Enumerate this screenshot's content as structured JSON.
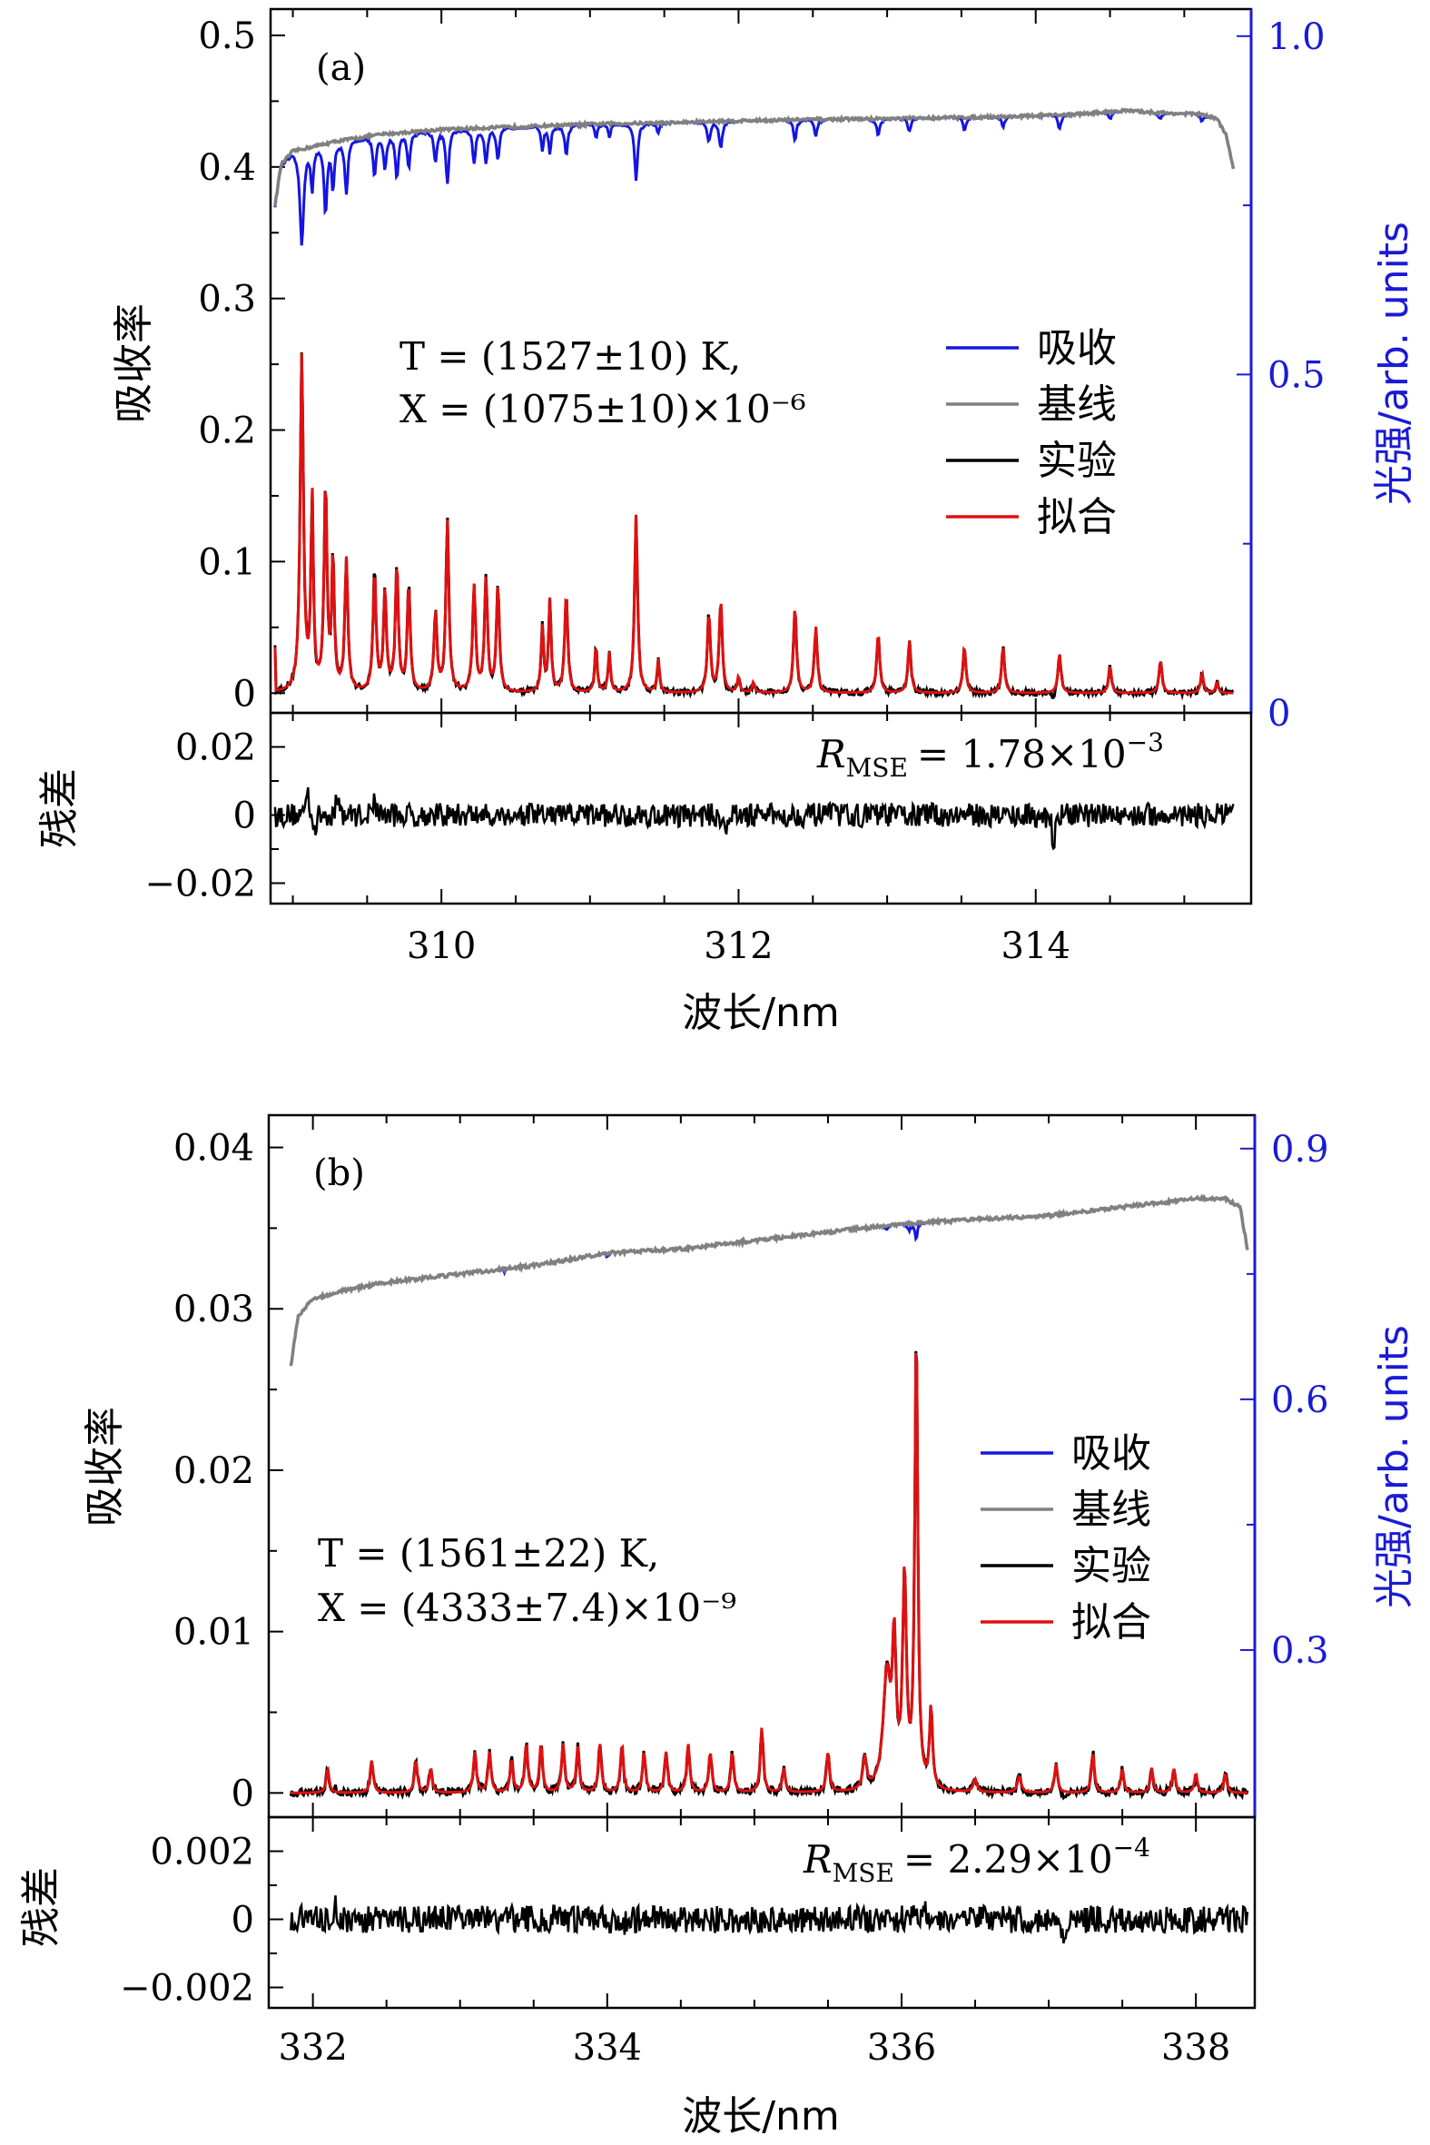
{
  "chart_data": [
    {
      "id": "a",
      "type": "line",
      "panel_label": "(a)",
      "xlabel": "波长/nm",
      "xlim": [
        308.85,
        315.45
      ],
      "xticks": [
        310,
        312,
        314
      ],
      "x_minor_step": 0.5,
      "top": {
        "ylabel": "吸收率",
        "ylim": [
          -0.015,
          0.52
        ],
        "yticks": [
          0,
          0.1,
          0.2,
          0.3,
          0.4,
          0.5
        ],
        "ytick_labels": [
          "0",
          "0.1",
          "0.2",
          "0.3",
          "0.4",
          "0.5"
        ],
        "y2label": "光强/arb. units",
        "y2lim": [
          0,
          1.04
        ],
        "y2ticks": [
          0,
          0.5,
          1.0
        ],
        "y2tick_labels": [
          "0",
          "0.5",
          "1.0"
        ],
        "annotation": [
          "T = (1527±10) K,",
          "X = (1075±10)×10⁻⁶"
        ],
        "legend": [
          {
            "label": "吸收",
            "color": "#1515e0"
          },
          {
            "label": "基线",
            "color": "#808080"
          },
          {
            "label": "实验",
            "color": "#000000"
          },
          {
            "label": "拟合",
            "color": "#e01010"
          }
        ],
        "series": [
          {
            "name": "基线",
            "axis": "right",
            "color": "#808080",
            "x": [
              308.88,
              308.92,
              309.0,
              309.1,
              309.3,
              309.6,
              310.0,
              310.5,
              311.0,
              311.5,
              312.0,
              312.5,
              313.0,
              313.5,
              314.0,
              314.3,
              314.6,
              314.9,
              315.1,
              315.22,
              315.28,
              315.33
            ],
            "y": [
              0.75,
              0.81,
              0.83,
              0.835,
              0.845,
              0.855,
              0.862,
              0.866,
              0.87,
              0.872,
              0.875,
              0.877,
              0.878,
              0.88,
              0.882,
              0.885,
              0.89,
              0.886,
              0.885,
              0.878,
              0.855,
              0.805
            ]
          },
          {
            "name": "吸收",
            "axis": "right",
            "color": "#1515e0",
            "dips": [
              [
                309.06,
                0.14,
                0.015
              ],
              [
                309.13,
                0.06,
                0.01
              ],
              [
                309.22,
                0.1,
                0.012
              ],
              [
                309.27,
                0.07,
                0.01
              ],
              [
                309.36,
                0.08,
                0.012
              ],
              [
                309.55,
                0.06,
                0.012
              ],
              [
                309.62,
                0.05,
                0.012
              ],
              [
                309.7,
                0.065,
                0.012
              ],
              [
                309.78,
                0.05,
                0.012
              ],
              [
                309.96,
                0.045,
                0.012
              ],
              [
                310.04,
                0.08,
                0.012
              ],
              [
                310.22,
                0.05,
                0.012
              ],
              [
                310.3,
                0.05,
                0.012
              ],
              [
                310.38,
                0.048,
                0.012
              ],
              [
                310.68,
                0.035,
                0.01
              ],
              [
                310.73,
                0.04,
                0.01
              ],
              [
                310.84,
                0.045,
                0.012
              ],
              [
                311.04,
                0.02,
                0.01
              ],
              [
                311.13,
                0.02,
                0.01
              ],
              [
                311.31,
                0.085,
                0.012
              ],
              [
                311.46,
                0.015,
                0.01
              ],
              [
                311.8,
                0.03,
                0.012
              ],
              [
                311.88,
                0.04,
                0.012
              ],
              [
                312.38,
                0.03,
                0.012
              ],
              [
                312.52,
                0.025,
                0.012
              ],
              [
                312.94,
                0.025,
                0.012
              ],
              [
                313.15,
                0.02,
                0.012
              ],
              [
                313.52,
                0.018,
                0.012
              ],
              [
                313.78,
                0.015,
                0.012
              ],
              [
                314.16,
                0.02,
                0.012
              ],
              [
                314.5,
                0.01,
                0.012
              ],
              [
                314.84,
                0.01,
                0.012
              ],
              [
                315.12,
                0.01,
                0.012
              ]
            ]
          },
          {
            "name": "实验",
            "axis": "left",
            "color": "#000000"
          },
          {
            "name": "拟合",
            "axis": "left",
            "color": "#e01010",
            "start_value": 0.035,
            "peaks": [
              [
                309.06,
                0.255,
                0.013
              ],
              [
                309.13,
                0.145,
                0.01
              ],
              [
                309.22,
                0.155,
                0.012
              ],
              [
                309.27,
                0.1,
                0.01
              ],
              [
                309.36,
                0.1,
                0.012
              ],
              [
                309.55,
                0.09,
                0.012
              ],
              [
                309.62,
                0.075,
                0.012
              ],
              [
                309.7,
                0.095,
                0.012
              ],
              [
                309.78,
                0.08,
                0.012
              ],
              [
                309.96,
                0.06,
                0.012
              ],
              [
                310.04,
                0.13,
                0.012
              ],
              [
                310.22,
                0.08,
                0.012
              ],
              [
                310.3,
                0.085,
                0.012
              ],
              [
                310.38,
                0.08,
                0.012
              ],
              [
                310.68,
                0.05,
                0.01
              ],
              [
                310.73,
                0.07,
                0.01
              ],
              [
                310.84,
                0.075,
                0.012
              ],
              [
                311.04,
                0.035,
                0.01
              ],
              [
                311.13,
                0.03,
                0.01
              ],
              [
                311.31,
                0.135,
                0.012
              ],
              [
                311.46,
                0.025,
                0.01
              ],
              [
                311.8,
                0.06,
                0.012
              ],
              [
                311.88,
                0.07,
                0.012
              ],
              [
                312.0,
                0.012,
                0.01
              ],
              [
                312.1,
                0.008,
                0.01
              ],
              [
                312.38,
                0.065,
                0.012
              ],
              [
                312.52,
                0.05,
                0.012
              ],
              [
                312.94,
                0.045,
                0.012
              ],
              [
                313.15,
                0.04,
                0.012
              ],
              [
                313.52,
                0.035,
                0.012
              ],
              [
                313.78,
                0.035,
                0.012
              ],
              [
                314.16,
                0.03,
                0.012
              ],
              [
                314.5,
                0.02,
                0.012
              ],
              [
                314.84,
                0.025,
                0.012
              ],
              [
                315.12,
                0.015,
                0.012
              ],
              [
                315.22,
                0.008,
                0.01
              ]
            ]
          }
        ]
      },
      "residual": {
        "ylabel": "残差",
        "ylim": [
          -0.026,
          0.03
        ],
        "yticks": [
          -0.02,
          0,
          0.02
        ],
        "ytick_labels": [
          "−0.02",
          "0",
          "0.02"
        ],
        "rmse_label": "R",
        "rmse_sub": "MSE",
        "rmse_value": "= 1.78×10",
        "rmse_exp": "−3",
        "noise_amplitude": 0.0035,
        "spikes": [
          [
            309.1,
            0.009
          ],
          [
            309.15,
            -0.005
          ],
          [
            309.55,
            0.006
          ],
          [
            311.92,
            -0.005
          ],
          [
            314.12,
            -0.009
          ],
          [
            309.3,
            0.006
          ]
        ]
      }
    },
    {
      "id": "b",
      "type": "line",
      "panel_label": "(b)",
      "xlabel": "波长/nm",
      "xlim": [
        331.7,
        338.4
      ],
      "xticks": [
        332,
        334,
        336,
        338
      ],
      "x_minor_step": 0.5,
      "top": {
        "ylabel": "吸收率",
        "ylim": [
          -0.0015,
          0.042
        ],
        "yticks": [
          0,
          0.01,
          0.02,
          0.03,
          0.04
        ],
        "ytick_labels": [
          "0",
          "0.01",
          "0.02",
          "0.03",
          "0.04"
        ],
        "y2label": "光强/arb. units",
        "y2lim": [
          0.1,
          0.94
        ],
        "y2ticks": [
          0.3,
          0.6,
          0.9
        ],
        "y2tick_labels": [
          "0.3",
          "0.6",
          "0.9"
        ],
        "annotation": [
          "T = (1561±22) K,",
          "X = (4333±7.4)×10⁻⁹"
        ],
        "legend": [
          {
            "label": "吸收",
            "color": "#1515e0"
          },
          {
            "label": "基线",
            "color": "#808080"
          },
          {
            "label": "实验",
            "color": "#000000"
          },
          {
            "label": "拟合",
            "color": "#e01010"
          }
        ],
        "series": [
          {
            "name": "基线",
            "axis": "right",
            "color": "#808080",
            "x": [
              331.85,
              331.9,
              332.0,
              332.2,
              332.5,
              333.0,
              333.5,
              334.0,
              334.5,
              335.0,
              335.5,
              336.0,
              336.5,
              337.0,
              337.5,
              338.0,
              338.2,
              338.3,
              338.35
            ],
            "y": [
              0.64,
              0.7,
              0.72,
              0.73,
              0.74,
              0.75,
              0.76,
              0.775,
              0.78,
              0.79,
              0.8,
              0.81,
              0.815,
              0.82,
              0.83,
              0.84,
              0.84,
              0.83,
              0.78
            ]
          },
          {
            "name": "吸收",
            "axis": "right",
            "color": "#1515e0",
            "dips": [
              [
                336.05,
                0.008,
                0.012
              ],
              [
                336.1,
                0.018,
                0.01
              ],
              [
                335.9,
                0.004,
                0.012
              ],
              [
                334.0,
                0.003,
                0.012
              ],
              [
                333.3,
                0.003,
                0.012
              ]
            ]
          },
          {
            "name": "实验",
            "axis": "left",
            "color": "#000000"
          },
          {
            "name": "拟合",
            "axis": "left",
            "color": "#e01010",
            "start_value": 0.0,
            "peaks": [
              [
                332.1,
                0.0015,
                0.012
              ],
              [
                332.4,
                0.002,
                0.012
              ],
              [
                332.7,
                0.002,
                0.012
              ],
              [
                332.8,
                0.0015,
                0.012
              ],
              [
                333.1,
                0.0025,
                0.012
              ],
              [
                333.2,
                0.0025,
                0.012
              ],
              [
                333.35,
                0.002,
                0.012
              ],
              [
                333.45,
                0.003,
                0.012
              ],
              [
                333.55,
                0.003,
                0.012
              ],
              [
                333.7,
                0.003,
                0.012
              ],
              [
                333.8,
                0.0028,
                0.012
              ],
              [
                333.95,
                0.003,
                0.012
              ],
              [
                334.1,
                0.003,
                0.012
              ],
              [
                334.25,
                0.0025,
                0.012
              ],
              [
                334.4,
                0.0025,
                0.012
              ],
              [
                334.55,
                0.003,
                0.012
              ],
              [
                334.7,
                0.0025,
                0.012
              ],
              [
                334.85,
                0.0025,
                0.012
              ],
              [
                335.05,
                0.004,
                0.012
              ],
              [
                335.2,
                0.0015,
                0.012
              ],
              [
                335.5,
                0.0025,
                0.012
              ],
              [
                335.75,
                0.002,
                0.015
              ],
              [
                335.9,
                0.007,
                0.03
              ],
              [
                335.95,
                0.0085,
                0.015
              ],
              [
                336.02,
                0.013,
                0.015
              ],
              [
                336.1,
                0.0285,
                0.012
              ],
              [
                336.2,
                0.005,
                0.012
              ],
              [
                336.5,
                0.0008,
                0.015
              ],
              [
                336.8,
                0.001,
                0.015
              ],
              [
                337.05,
                0.0018,
                0.012
              ],
              [
                337.3,
                0.0025,
                0.012
              ],
              [
                337.5,
                0.0015,
                0.012
              ],
              [
                337.7,
                0.0015,
                0.012
              ],
              [
                337.85,
                0.0015,
                0.012
              ],
              [
                338.0,
                0.0012,
                0.012
              ],
              [
                338.2,
                0.0012,
                0.012
              ]
            ]
          }
        ]
      },
      "residual": {
        "ylabel": "残差",
        "ylim": [
          -0.0026,
          0.003
        ],
        "yticks": [
          -0.002,
          0,
          0.002
        ],
        "ytick_labels": [
          "−0.002",
          "0",
          "0.002"
        ],
        "rmse_label": "R",
        "rmse_sub": "MSE",
        "rmse_value": "= 2.29×10",
        "rmse_exp": "−4",
        "noise_amplitude": 0.0004,
        "spikes": [
          [
            332.15,
            0.0006
          ],
          [
            334.1,
            -0.0006
          ],
          [
            336.15,
            0.0007
          ],
          [
            337.1,
            -0.0006
          ]
        ]
      }
    }
  ]
}
